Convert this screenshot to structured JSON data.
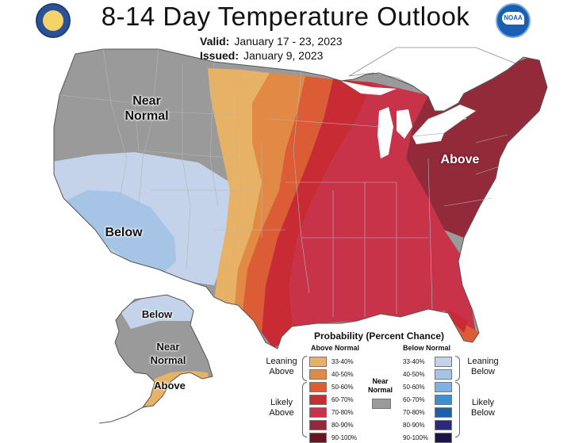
{
  "title": "8-14 Day Temperature Outlook",
  "valid_label": "Valid:",
  "valid_dates": "January 17 - 23, 2023",
  "issued_label": "Issued:",
  "issued_date": "January 9, 2023",
  "logos": {
    "left": "dept-of-commerce-seal",
    "right": "noaa-logo",
    "noaa_text": "NOAA"
  },
  "region_labels": {
    "conus_near_normal": "Near Normal",
    "conus_below": "Below",
    "conus_above": "Above",
    "ak_below": "Below",
    "ak_near_normal": "Near Normal",
    "ak_above": "Above"
  },
  "colors": {
    "near_normal": "#9a9a9a",
    "above": [
      "#e7b265",
      "#e28a45",
      "#db5c35",
      "#c92b34",
      "#c8334a",
      "#922a3a",
      "#6b1420"
    ],
    "below": [
      "#c4d3ea",
      "#a5c4e6",
      "#7fb2e2",
      "#3a8fd6",
      "#1c5fab",
      "#2b2a7a",
      "#1b1448"
    ],
    "ocean": "#ffffff",
    "land_no_data": "#ffffff"
  },
  "legend": {
    "title": "Probability (Percent Chance)",
    "above_header": "Above Normal",
    "below_header": "Below Normal",
    "ranges": [
      "33-40%",
      "40-50%",
      "50-60%",
      "60-70%",
      "70-80%",
      "80-90%",
      "90-100%"
    ],
    "leaning_above": "Leaning Above",
    "likely_above": "Likely Above",
    "leaning_below": "Leaning Below",
    "likely_below": "Likely Below",
    "near_normal": "Near Normal"
  }
}
